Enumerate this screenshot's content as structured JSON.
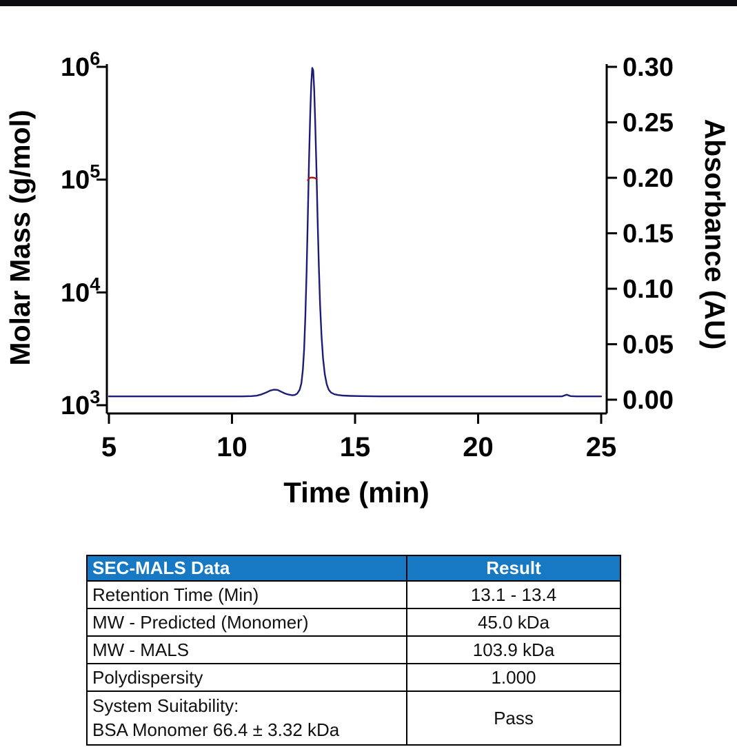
{
  "page": {
    "background": "#ffffff",
    "top_bar_color": "#0b0b10"
  },
  "chart_data": {
    "type": "line",
    "title": "",
    "grid": false,
    "legend": "none",
    "x_axis": {
      "label": "Time (min)",
      "range": [
        5,
        25
      ],
      "ticks": [
        5,
        10,
        15,
        20,
        25
      ]
    },
    "left_y_axis": {
      "label": "Molar Mass (g/mol)",
      "scale": "log",
      "range": [
        1000,
        1000000
      ],
      "ticks": [
        {
          "value": 1000000,
          "label": "10",
          "exp": "6"
        },
        {
          "value": 100000,
          "label": "10",
          "exp": "5"
        },
        {
          "value": 10000,
          "label": "10",
          "exp": "4"
        },
        {
          "value": 1000,
          "label": "10",
          "exp": "3"
        }
      ]
    },
    "right_y_axis": {
      "label": "Absorbance (AU)",
      "range": [
        0,
        0.3
      ],
      "ticks": [
        {
          "value": 0.3,
          "label": "0.30"
        },
        {
          "value": 0.25,
          "label": "0.25"
        },
        {
          "value": 0.2,
          "label": "0.20"
        },
        {
          "value": 0.15,
          "label": "0.15"
        },
        {
          "value": 0.1,
          "label": "0.10"
        },
        {
          "value": 0.05,
          "label": "0.05"
        },
        {
          "value": 0.0,
          "label": "0.00"
        }
      ]
    },
    "series": [
      {
        "id": "absorbance-trace",
        "name": "Absorbance (AU)",
        "axis": "right",
        "color": "#1c1c78",
        "points": [
          [
            5,
            0.003
          ],
          [
            6,
            0.003
          ],
          [
            7,
            0.003
          ],
          [
            8,
            0.003
          ],
          [
            9,
            0.003
          ],
          [
            9.5,
            0.003
          ],
          [
            10,
            0.003
          ],
          [
            10.4,
            0.003
          ],
          [
            10.8,
            0.0032
          ],
          [
            11.0,
            0.0036
          ],
          [
            11.2,
            0.0048
          ],
          [
            11.4,
            0.0066
          ],
          [
            11.55,
            0.0082
          ],
          [
            11.7,
            0.009
          ],
          [
            11.85,
            0.0088
          ],
          [
            12.0,
            0.0072
          ],
          [
            12.15,
            0.0056
          ],
          [
            12.3,
            0.0046
          ],
          [
            12.45,
            0.004
          ],
          [
            12.55,
            0.0042
          ],
          [
            12.65,
            0.0055
          ],
          [
            12.75,
            0.009
          ],
          [
            12.82,
            0.015
          ],
          [
            12.88,
            0.027
          ],
          [
            12.93,
            0.045
          ],
          [
            12.98,
            0.075
          ],
          [
            13.03,
            0.115
          ],
          [
            13.08,
            0.165
          ],
          [
            13.13,
            0.215
          ],
          [
            13.18,
            0.258
          ],
          [
            13.22,
            0.285
          ],
          [
            13.26,
            0.299
          ],
          [
            13.3,
            0.297
          ],
          [
            13.34,
            0.28
          ],
          [
            13.38,
            0.25
          ],
          [
            13.43,
            0.208
          ],
          [
            13.48,
            0.162
          ],
          [
            13.53,
            0.12
          ],
          [
            13.58,
            0.085
          ],
          [
            13.64,
            0.057
          ],
          [
            13.7,
            0.037
          ],
          [
            13.77,
            0.023
          ],
          [
            13.85,
            0.014
          ],
          [
            13.93,
            0.009
          ],
          [
            14.02,
            0.0065
          ],
          [
            14.15,
            0.005
          ],
          [
            14.3,
            0.0042
          ],
          [
            14.5,
            0.0037
          ],
          [
            14.8,
            0.0034
          ],
          [
            15.2,
            0.0032
          ],
          [
            16,
            0.003
          ],
          [
            17,
            0.003
          ],
          [
            18,
            0.003
          ],
          [
            19,
            0.003
          ],
          [
            20,
            0.003
          ],
          [
            21,
            0.003
          ],
          [
            22,
            0.003
          ],
          [
            23,
            0.003
          ],
          [
            23.4,
            0.003
          ],
          [
            23.6,
            0.0045
          ],
          [
            23.75,
            0.0032
          ],
          [
            24,
            0.003
          ],
          [
            24.5,
            0.003
          ],
          [
            25,
            0.003
          ]
        ]
      },
      {
        "id": "molar-mass-trace",
        "name": "Molar Mass (MALS)",
        "axis": "left",
        "color": "#a31515",
        "points": [
          [
            13.08,
            99000
          ],
          [
            13.14,
            103000
          ],
          [
            13.2,
            104200
          ],
          [
            13.27,
            104200
          ],
          [
            13.33,
            103800
          ],
          [
            13.4,
            102500
          ],
          [
            13.45,
            100500
          ]
        ]
      }
    ]
  },
  "table": {
    "header": {
      "label_col": "SEC-MALS Data",
      "value_col": "Result",
      "bg": "#1778c4",
      "text_color": "#ffffff"
    },
    "rows": [
      {
        "label": "Retention Time (Min)",
        "value": "13.1 - 13.4"
      },
      {
        "label": "MW - Predicted (Monomer)",
        "value": "45.0 kDa"
      },
      {
        "label": "MW - MALS",
        "value": "103.9 kDa"
      },
      {
        "label": "Polydispersity",
        "value": "1.000"
      },
      {
        "label": "System Suitability:\nBSA Monomer 66.4 ± 3.32 kDa",
        "value": "Pass"
      }
    ]
  }
}
